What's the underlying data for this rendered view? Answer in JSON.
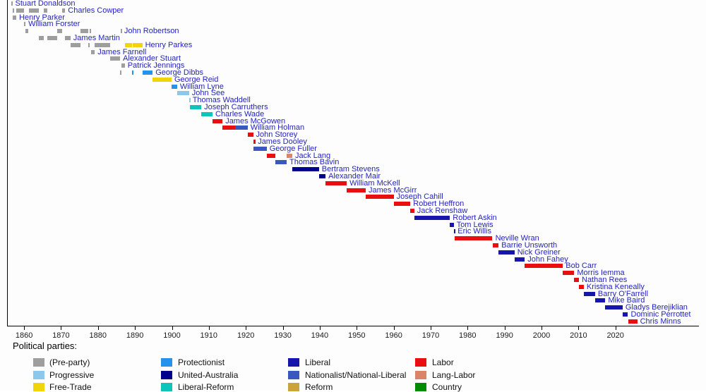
{
  "legend": {
    "heading": "Political parties:",
    "columns": [
      [
        "pre",
        "progressive",
        "freetrade"
      ],
      [
        "protectionist",
        "ua",
        "libreform"
      ],
      [
        "liberal",
        "nationalist",
        "reform"
      ],
      [
        "labor",
        "langlabor",
        "country"
      ]
    ]
  },
  "chart_data": {
    "type": "bar",
    "variant": "timeline-gantt",
    "xlabel": "",
    "ylabel": "",
    "grid": false,
    "legend_position": "bottom",
    "x_ticks": [
      1860,
      1870,
      1880,
      1890,
      1900,
      1910,
      1920,
      1930,
      1940,
      1950,
      1960,
      1970,
      1980,
      1990,
      2000,
      2010,
      2020
    ],
    "xlim": [
      1855.4,
      2042.4
    ],
    "colors": {
      "premier_label": "#2424BE",
      "axis": "#000000"
    },
    "parties": {
      "pre": {
        "label": "(Pre-party)",
        "color": "#9E9E9E"
      },
      "progressive": {
        "label": "Progressive",
        "color": "#8CC8EC"
      },
      "freetrade": {
        "label": "Free-Trade",
        "color": "#F2D40A"
      },
      "protectionist": {
        "label": "Protectionist",
        "color": "#2593EC"
      },
      "ua": {
        "label": "United-Australia",
        "color": "#00008C"
      },
      "libreform": {
        "label": "Liberal-Reform",
        "color": "#0CC5B8"
      },
      "liberal": {
        "label": "Liberal",
        "color": "#1616AC"
      },
      "nationalist": {
        "label": "Nationalist/National-Liberal",
        "color": "#3858BE"
      },
      "reform": {
        "label": "Reform",
        "color": "#C8A43A"
      },
      "labor": {
        "label": "Labor",
        "color": "#E90E10"
      },
      "langlabor": {
        "label": "Lang-Labor",
        "color": "#DA8468"
      },
      "country": {
        "label": "Country",
        "color": "#058A05"
      }
    },
    "premiers": [
      {
        "name": "Stuart Donaldson",
        "terms": [
          [
            1856.42,
            1856.65,
            "pre"
          ]
        ]
      },
      {
        "name": "Charles Cowper",
        "terms": [
          [
            1856.65,
            1856.79,
            "pre"
          ],
          [
            1857.71,
            1859.82,
            "pre"
          ],
          [
            1861.03,
            1863.79,
            "pre"
          ],
          [
            1865.09,
            1866.05,
            "pre"
          ],
          [
            1870.04,
            1870.93,
            "pre"
          ]
        ]
      },
      {
        "name": "Henry Parker",
        "terms": [
          [
            1856.79,
            1857.71,
            "pre"
          ]
        ]
      },
      {
        "name": "William Forster",
        "terms": [
          [
            1859.82,
            1860.19,
            "pre"
          ]
        ]
      },
      {
        "name": "John Robertson",
        "terms": [
          [
            1860.19,
            1861.03,
            "pre"
          ],
          [
            1868.79,
            1870.04,
            "pre"
          ],
          [
            1875.12,
            1877.22,
            "pre"
          ],
          [
            1877.63,
            1877.96,
            "pre"
          ],
          [
            1885.96,
            1886.13,
            "pre"
          ]
        ]
      },
      {
        "name": "James Martin",
        "terms": [
          [
            1863.79,
            1865.09,
            "pre"
          ],
          [
            1866.05,
            1868.79,
            "pre"
          ],
          [
            1870.93,
            1872.37,
            "pre"
          ]
        ]
      },
      {
        "name": "Henry Parkes",
        "terms": [
          [
            1872.37,
            1875.12,
            "pre"
          ],
          [
            1877.22,
            1877.63,
            "pre"
          ],
          [
            1878.96,
            1883.04,
            "pre"
          ],
          [
            1887.05,
            1889.04,
            "freetrade"
          ],
          [
            1889.21,
            1891.8,
            "freetrade"
          ]
        ]
      },
      {
        "name": "James Farnell",
        "terms": [
          [
            1877.96,
            1878.96,
            "pre"
          ]
        ]
      },
      {
        "name": "Alexander Stuart",
        "terms": [
          [
            1883.04,
            1885.79,
            "pre"
          ]
        ]
      },
      {
        "name": "Patrick Jennings",
        "terms": [
          [
            1886.13,
            1887.05,
            "pre"
          ]
        ]
      },
      {
        "name": "George Dibbs",
        "terms": [
          [
            1885.79,
            1885.96,
            "pre"
          ],
          [
            1889.04,
            1889.21,
            "protectionist"
          ],
          [
            1891.8,
            1894.6,
            "protectionist"
          ]
        ]
      },
      {
        "name": "George Reid",
        "terms": [
          [
            1894.6,
            1899.71,
            "freetrade"
          ]
        ]
      },
      {
        "name": "William Lyne",
        "terms": [
          [
            1899.71,
            1901.22,
            "protectionist"
          ]
        ]
      },
      {
        "name": "John See",
        "terms": [
          [
            1901.22,
            1904.45,
            "progressive"
          ]
        ]
      },
      {
        "name": "Thomas Waddell",
        "terms": [
          [
            1904.45,
            1904.63,
            "progressive"
          ]
        ]
      },
      {
        "name": "Joseph Carruthers",
        "terms": [
          [
            1904.63,
            1907.75,
            "libreform"
          ]
        ]
      },
      {
        "name": "Charles Wade",
        "terms": [
          [
            1907.75,
            1910.8,
            "libreform"
          ]
        ]
      },
      {
        "name": "James McGowen",
        "terms": [
          [
            1910.8,
            1913.5,
            "labor"
          ]
        ]
      },
      {
        "name": "William Holman",
        "terms": [
          [
            1913.5,
            1916.87,
            "labor"
          ],
          [
            1916.87,
            1920.28,
            "nationalist"
          ]
        ]
      },
      {
        "name": "John Storey",
        "terms": [
          [
            1920.28,
            1921.78,
            "labor"
          ]
        ]
      },
      {
        "name": "James Dooley",
        "terms": [
          [
            1921.78,
            1921.95,
            "labor"
          ],
          [
            1921.97,
            1922.3,
            "labor"
          ]
        ]
      },
      {
        "name": "George Fuller",
        "terms": [
          [
            1921.95,
            1921.97,
            "nationalist"
          ],
          [
            1922.3,
            1925.44,
            "nationalist"
          ]
        ]
      },
      {
        "name": "Jack Lang",
        "terms": [
          [
            1925.44,
            1927.79,
            "labor"
          ],
          [
            1930.84,
            1932.37,
            "langlabor"
          ]
        ]
      },
      {
        "name": "Thomas Bavin",
        "terms": [
          [
            1927.79,
            1930.84,
            "nationalist"
          ]
        ]
      },
      {
        "name": "Bertram Stevens",
        "terms": [
          [
            1932.37,
            1939.59,
            "ua"
          ]
        ]
      },
      {
        "name": "Alexander Mair",
        "terms": [
          [
            1939.59,
            1941.37,
            "ua"
          ]
        ]
      },
      {
        "name": "William McKell",
        "terms": [
          [
            1941.37,
            1947.1,
            "labor"
          ]
        ]
      },
      {
        "name": "James McGirr",
        "terms": [
          [
            1947.1,
            1952.25,
            "labor"
          ]
        ]
      },
      {
        "name": "Joseph Cahill",
        "terms": [
          [
            1952.25,
            1959.8,
            "labor"
          ]
        ]
      },
      {
        "name": "Robert Heffron",
        "terms": [
          [
            1959.8,
            1964.33,
            "labor"
          ]
        ]
      },
      {
        "name": "Jack Renshaw",
        "terms": [
          [
            1964.33,
            1965.37,
            "labor"
          ]
        ]
      },
      {
        "name": "Robert Askin",
        "terms": [
          [
            1965.37,
            1975.03,
            "liberal"
          ]
        ]
      },
      {
        "name": "Tom Lewis",
        "terms": [
          [
            1975.03,
            1976.06,
            "liberal"
          ]
        ]
      },
      {
        "name": "Eric Willis",
        "terms": [
          [
            1976.06,
            1976.37,
            "liberal"
          ]
        ]
      },
      {
        "name": "Neville Wran",
        "terms": [
          [
            1976.37,
            1986.54,
            "labor"
          ]
        ]
      },
      {
        "name": "Barrie Unsworth",
        "terms": [
          [
            1986.54,
            1988.21,
            "labor"
          ]
        ]
      },
      {
        "name": "Nick Greiner",
        "terms": [
          [
            1988.21,
            1992.49,
            "liberal"
          ]
        ]
      },
      {
        "name": "John Fahey",
        "terms": [
          [
            1992.49,
            1995.27,
            "liberal"
          ]
        ]
      },
      {
        "name": "Bob Carr",
        "terms": [
          [
            1995.27,
            2005.6,
            "labor"
          ]
        ]
      },
      {
        "name": "Morris Iemma",
        "terms": [
          [
            2005.6,
            2008.67,
            "labor"
          ]
        ]
      },
      {
        "name": "Nathan Rees",
        "terms": [
          [
            2008.67,
            2009.92,
            "labor"
          ]
        ]
      },
      {
        "name": "Kristina Keneally",
        "terms": [
          [
            2009.92,
            2011.24,
            "labor"
          ]
        ]
      },
      {
        "name": "Barry O'Farrell",
        "terms": [
          [
            2011.24,
            2014.3,
            "liberal"
          ]
        ]
      },
      {
        "name": "Mike Baird",
        "terms": [
          [
            2014.3,
            2017.08,
            "liberal"
          ]
        ]
      },
      {
        "name": "Gladys Berejiklian",
        "terms": [
          [
            2017.08,
            2021.76,
            "liberal"
          ]
        ]
      },
      {
        "name": "Dominic Perrottet",
        "terms": [
          [
            2021.76,
            2023.21,
            "liberal"
          ]
        ]
      },
      {
        "name": "Chris Minns",
        "terms": [
          [
            2023.21,
            2025.7,
            "labor"
          ]
        ]
      }
    ]
  }
}
